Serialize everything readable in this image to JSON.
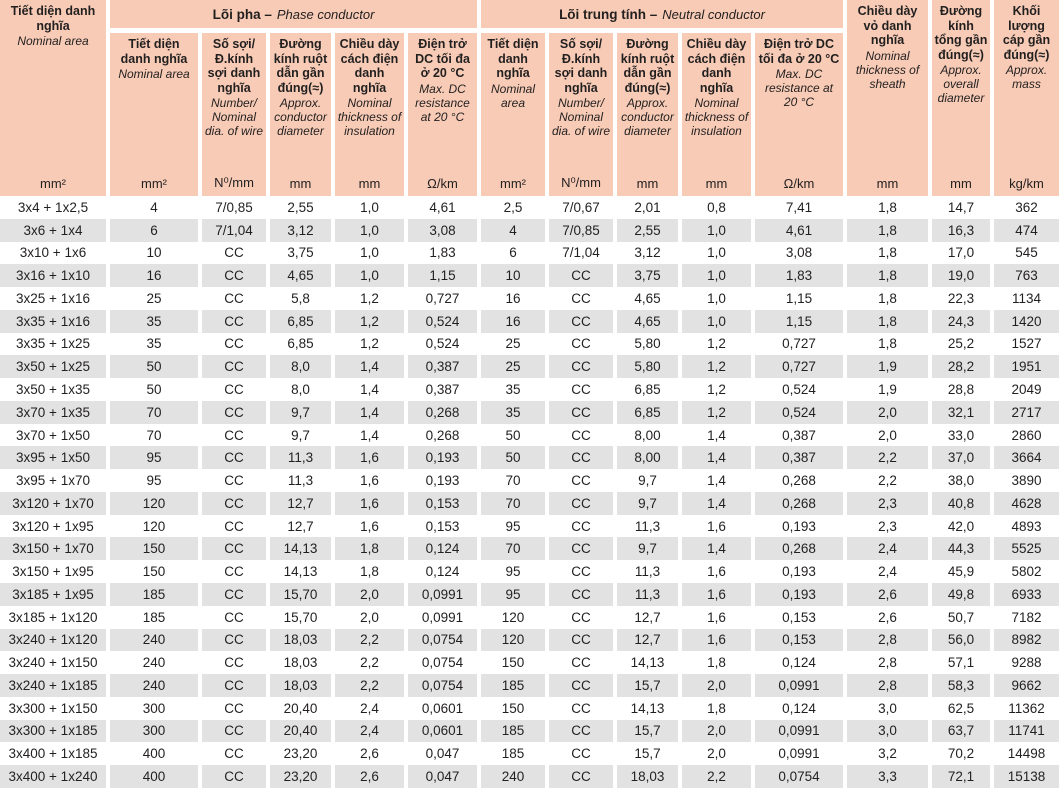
{
  "colors": {
    "header_bg": "#f7cbb6",
    "row_stripe": "#e2e2e2",
    "row_white": "#ffffff",
    "text": "#221f1f"
  },
  "header": {
    "col1": {
      "vi": "Tiết diện danh nghĩa",
      "en": "Nominal area",
      "unit": "mm²"
    },
    "group_phase": {
      "vi": "Lõi pha –",
      "en": "Phase conductor"
    },
    "group_neutral": {
      "vi": "Lõi trung tính –",
      "en": "Neutral conductor"
    },
    "columns": [
      {
        "vi": "Tiết diện danh nghĩa",
        "en": "Nominal area",
        "unit": "mm²"
      },
      {
        "vi": "Số sợi/ Đ.kính sợi danh nghĩa",
        "en": "Number/ Nominal dia. of wire",
        "unit": "N⁰/mm"
      },
      {
        "vi": "Đường kính ruột dẫn gần đúng(≈)",
        "en": "Approx. conductor diameter",
        "unit": "mm"
      },
      {
        "vi": "Chiều dày cách điện danh nghĩa",
        "en": "Nominal thickness of insulation",
        "unit": "mm"
      },
      {
        "vi": "Điện trở DC tối đa ở 20 °C",
        "en": "Max. DC resistance at 20 °C",
        "unit": "Ω/km"
      },
      {
        "vi": "Tiết diện danh nghĩa",
        "en": "Nominal area",
        "unit": "mm²"
      },
      {
        "vi": "Số sợi/ Đ.kính sợi danh nghĩa",
        "en": "Number/ Nominal dia. of wire",
        "unit": "N⁰/mm"
      },
      {
        "vi": "Đường kính ruột dẫn gần đúng(≈)",
        "en": "Approx. conductor diameter",
        "unit": "mm"
      },
      {
        "vi": "Chiều dày cách điện danh nghĩa",
        "en": "Nominal thickness of insulation",
        "unit": "mm"
      },
      {
        "vi": "Điện trở DC tối đa ở 20 °C",
        "en": "Max. DC resistance at 20 °C",
        "unit": "Ω/km"
      }
    ],
    "right": [
      {
        "vi": "Chiều dày vỏ danh nghĩa",
        "en": "Nominal thickness of sheath",
        "unit": "mm"
      },
      {
        "vi": "Đường kính tổng gần đúng(≈)",
        "en": "Approx. overall diameter",
        "unit": "mm"
      },
      {
        "vi": "Khối lượng cáp gần đúng(≈)",
        "en": "Approx. mass",
        "unit": "kg/km"
      }
    ]
  },
  "rows": [
    [
      "3x4 + 1x2,5",
      "4",
      "7/0,85",
      "2,55",
      "1,0",
      "4,61",
      "2,5",
      "7/0,67",
      "2,01",
      "0,8",
      "7,41",
      "1,8",
      "14,7",
      "362"
    ],
    [
      "3x6 + 1x4",
      "6",
      "7/1,04",
      "3,12",
      "1,0",
      "3,08",
      "4",
      "7/0,85",
      "2,55",
      "1,0",
      "4,61",
      "1,8",
      "16,3",
      "474"
    ],
    [
      "3x10 + 1x6",
      "10",
      "CC",
      "3,75",
      "1,0",
      "1,83",
      "6",
      "7/1,04",
      "3,12",
      "1,0",
      "3,08",
      "1,8",
      "17,0",
      "545"
    ],
    [
      "3x16 + 1x10",
      "16",
      "CC",
      "4,65",
      "1,0",
      "1,15",
      "10",
      "CC",
      "3,75",
      "1,0",
      "1,83",
      "1,8",
      "19,0",
      "763"
    ],
    [
      "3x25 + 1x16",
      "25",
      "CC",
      "5,8",
      "1,2",
      "0,727",
      "16",
      "CC",
      "4,65",
      "1,0",
      "1,15",
      "1,8",
      "22,3",
      "1134"
    ],
    [
      "3x35 + 1x16",
      "35",
      "CC",
      "6,85",
      "1,2",
      "0,524",
      "16",
      "CC",
      "4,65",
      "1,0",
      "1,15",
      "1,8",
      "24,3",
      "1420"
    ],
    [
      "3x35 + 1x25",
      "35",
      "CC",
      "6,85",
      "1,2",
      "0,524",
      "25",
      "CC",
      "5,80",
      "1,2",
      "0,727",
      "1,8",
      "25,2",
      "1527"
    ],
    [
      "3x50 + 1x25",
      "50",
      "CC",
      "8,0",
      "1,4",
      "0,387",
      "25",
      "CC",
      "5,80",
      "1,2",
      "0,727",
      "1,9",
      "28,2",
      "1951"
    ],
    [
      "3x50 + 1x35",
      "50",
      "CC",
      "8,0",
      "1,4",
      "0,387",
      "35",
      "CC",
      "6,85",
      "1,2",
      "0,524",
      "1,9",
      "28,8",
      "2049"
    ],
    [
      "3x70 + 1x35",
      "70",
      "CC",
      "9,7",
      "1,4",
      "0,268",
      "35",
      "CC",
      "6,85",
      "1,2",
      "0,524",
      "2,0",
      "32,1",
      "2717"
    ],
    [
      "3x70 + 1x50",
      "70",
      "CC",
      "9,7",
      "1,4",
      "0,268",
      "50",
      "CC",
      "8,00",
      "1,4",
      "0,387",
      "2,0",
      "33,0",
      "2860"
    ],
    [
      "3x95 + 1x50",
      "95",
      "CC",
      "11,3",
      "1,6",
      "0,193",
      "50",
      "CC",
      "8,00",
      "1,4",
      "0,387",
      "2,2",
      "37,0",
      "3664"
    ],
    [
      "3x95 + 1x70",
      "95",
      "CC",
      "11,3",
      "1,6",
      "0,193",
      "70",
      "CC",
      "9,7",
      "1,4",
      "0,268",
      "2,2",
      "38,0",
      "3890"
    ],
    [
      "3x120 + 1x70",
      "120",
      "CC",
      "12,7",
      "1,6",
      "0,153",
      "70",
      "CC",
      "9,7",
      "1,4",
      "0,268",
      "2,3",
      "40,8",
      "4628"
    ],
    [
      "3x120 + 1x95",
      "120",
      "CC",
      "12,7",
      "1,6",
      "0,153",
      "95",
      "CC",
      "11,3",
      "1,6",
      "0,193",
      "2,3",
      "42,0",
      "4893"
    ],
    [
      "3x150 + 1x70",
      "150",
      "CC",
      "14,13",
      "1,8",
      "0,124",
      "70",
      "CC",
      "9,7",
      "1,4",
      "0,268",
      "2,4",
      "44,3",
      "5525"
    ],
    [
      "3x150 + 1x95",
      "150",
      "CC",
      "14,13",
      "1,8",
      "0,124",
      "95",
      "CC",
      "11,3",
      "1,6",
      "0,193",
      "2,4",
      "45,9",
      "5802"
    ],
    [
      "3x185 + 1x95",
      "185",
      "CC",
      "15,70",
      "2,0",
      "0,0991",
      "95",
      "CC",
      "11,3",
      "1,6",
      "0,193",
      "2,6",
      "49,8",
      "6933"
    ],
    [
      "3x185 + 1x120",
      "185",
      "CC",
      "15,70",
      "2,0",
      "0,0991",
      "120",
      "CC",
      "12,7",
      "1,6",
      "0,153",
      "2,6",
      "50,7",
      "7182"
    ],
    [
      "3x240 + 1x120",
      "240",
      "CC",
      "18,03",
      "2,2",
      "0,0754",
      "120",
      "CC",
      "12,7",
      "1,6",
      "0,153",
      "2,8",
      "56,0",
      "8982"
    ],
    [
      "3x240 + 1x150",
      "240",
      "CC",
      "18,03",
      "2,2",
      "0,0754",
      "150",
      "CC",
      "14,13",
      "1,8",
      "0,124",
      "2,8",
      "57,1",
      "9288"
    ],
    [
      "3x240 + 1x185",
      "240",
      "CC",
      "18,03",
      "2,2",
      "0,0754",
      "185",
      "CC",
      "15,7",
      "2,0",
      "0,0991",
      "2,8",
      "58,3",
      "9662"
    ],
    [
      "3x300 + 1x150",
      "300",
      "CC",
      "20,40",
      "2,4",
      "0,0601",
      "150",
      "CC",
      "14,13",
      "1,8",
      "0,124",
      "3,0",
      "62,5",
      "11362"
    ],
    [
      "3x300 + 1x185",
      "300",
      "CC",
      "20,40",
      "2,4",
      "0,0601",
      "185",
      "CC",
      "15,7",
      "2,0",
      "0,0991",
      "3,0",
      "63,7",
      "11741"
    ],
    [
      "3x400 + 1x185",
      "400",
      "CC",
      "23,20",
      "2,6",
      "0,047",
      "185",
      "CC",
      "15,7",
      "2,0",
      "0,0991",
      "3,2",
      "70,2",
      "14498"
    ],
    [
      "3x400 + 1x240",
      "400",
      "CC",
      "23,20",
      "2,6",
      "0,047",
      "240",
      "CC",
      "18,03",
      "2,2",
      "0,0754",
      "3,3",
      "72,1",
      "15138"
    ]
  ]
}
